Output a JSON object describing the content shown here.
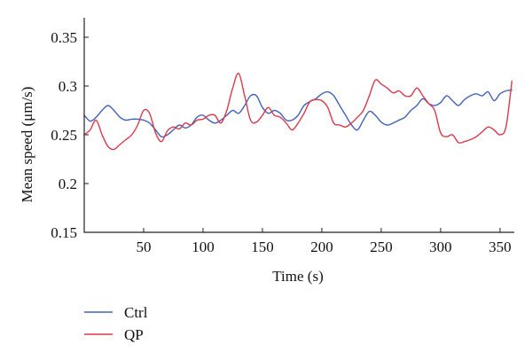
{
  "chart_data": {
    "type": "line",
    "xlabel": "Time (s)",
    "ylabel": "Mean speed (μm/s)",
    "xlim": [
      0,
      362
    ],
    "ylim": [
      0.15,
      0.37
    ],
    "xticks": [
      50,
      100,
      150,
      200,
      250,
      300,
      350
    ],
    "yticks": [
      0.15,
      0.2,
      0.25,
      0.3,
      0.35
    ],
    "ytick_labels": [
      "0.15",
      "0.2",
      "0.25",
      "0.3",
      "0.35"
    ],
    "grid": false,
    "legend_placement": "bottom-left",
    "series": [
      {
        "name": "Ctrl",
        "color": "#4062b8",
        "x": [
          0,
          5,
          10,
          15,
          20,
          25,
          30,
          35,
          40,
          45,
          50,
          55,
          60,
          65,
          70,
          75,
          80,
          85,
          90,
          95,
          100,
          105,
          110,
          115,
          120,
          125,
          130,
          135,
          140,
          145,
          150,
          155,
          160,
          165,
          170,
          175,
          180,
          185,
          190,
          195,
          200,
          205,
          210,
          215,
          220,
          225,
          230,
          235,
          240,
          245,
          250,
          255,
          260,
          265,
          270,
          275,
          280,
          285,
          290,
          295,
          300,
          305,
          310,
          315,
          320,
          325,
          330,
          335,
          340,
          345,
          350,
          355,
          360
        ],
        "y": [
          0.27,
          0.264,
          0.268,
          0.275,
          0.28,
          0.275,
          0.268,
          0.265,
          0.266,
          0.266,
          0.265,
          0.262,
          0.255,
          0.248,
          0.25,
          0.255,
          0.26,
          0.257,
          0.26,
          0.268,
          0.27,
          0.265,
          0.262,
          0.265,
          0.27,
          0.275,
          0.272,
          0.28,
          0.29,
          0.29,
          0.278,
          0.272,
          0.275,
          0.272,
          0.265,
          0.265,
          0.27,
          0.28,
          0.284,
          0.287,
          0.292,
          0.294,
          0.29,
          0.28,
          0.27,
          0.26,
          0.255,
          0.265,
          0.274,
          0.27,
          0.263,
          0.26,
          0.262,
          0.265,
          0.268,
          0.275,
          0.28,
          0.287,
          0.282,
          0.28,
          0.283,
          0.29,
          0.285,
          0.28,
          0.286,
          0.29,
          0.292,
          0.29,
          0.294,
          0.285,
          0.292,
          0.295,
          0.296
        ]
      },
      {
        "name": "QP",
        "color": "#d93a4a",
        "x": [
          0,
          5,
          10,
          15,
          20,
          25,
          30,
          35,
          40,
          45,
          50,
          55,
          60,
          65,
          70,
          75,
          80,
          85,
          90,
          95,
          100,
          105,
          110,
          115,
          120,
          125,
          130,
          135,
          140,
          145,
          150,
          155,
          160,
          165,
          170,
          175,
          180,
          185,
          190,
          195,
          200,
          205,
          210,
          215,
          220,
          225,
          230,
          235,
          240,
          245,
          250,
          255,
          260,
          265,
          270,
          275,
          280,
          285,
          290,
          295,
          300,
          305,
          310,
          315,
          320,
          325,
          330,
          335,
          340,
          345,
          350,
          355,
          360
        ],
        "y": [
          0.25,
          0.255,
          0.265,
          0.25,
          0.238,
          0.235,
          0.24,
          0.245,
          0.25,
          0.26,
          0.275,
          0.272,
          0.252,
          0.243,
          0.254,
          0.258,
          0.256,
          0.262,
          0.26,
          0.265,
          0.266,
          0.27,
          0.27,
          0.262,
          0.275,
          0.298,
          0.313,
          0.29,
          0.265,
          0.263,
          0.27,
          0.278,
          0.27,
          0.268,
          0.262,
          0.255,
          0.262,
          0.272,
          0.284,
          0.286,
          0.285,
          0.278,
          0.262,
          0.26,
          0.258,
          0.262,
          0.268,
          0.275,
          0.29,
          0.306,
          0.302,
          0.298,
          0.293,
          0.295,
          0.29,
          0.29,
          0.298,
          0.29,
          0.282,
          0.275,
          0.252,
          0.248,
          0.25,
          0.242,
          0.243,
          0.245,
          0.248,
          0.253,
          0.258,
          0.255,
          0.25,
          0.258,
          0.305
        ]
      }
    ]
  }
}
